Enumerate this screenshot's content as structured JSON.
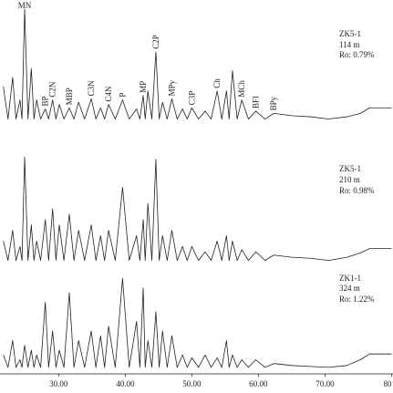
{
  "chart_data": [
    {
      "type": "line",
      "labels": [
        "ZK5-1",
        "114 m",
        "Ro: 0.79%"
      ],
      "annotations": [
        {
          "text": "MN",
          "x": 24.9
        },
        {
          "text": "BP",
          "x": 28.0
        },
        {
          "text": "C2N",
          "x": 29.1
        },
        {
          "text": "MBP",
          "x": 31.6
        },
        {
          "text": "C3N",
          "x": 34.9
        },
        {
          "text": "C4N",
          "x": 37.5
        },
        {
          "text": "P",
          "x": 39.6
        },
        {
          "text": "MP",
          "x": 42.7
        },
        {
          "text": "C2P",
          "x": 44.6
        },
        {
          "text": "MPy",
          "x": 47.0
        },
        {
          "text": "C3P",
          "x": 50.0
        },
        {
          "text": "Ch",
          "x": 53.8
        },
        {
          "text": "MCh",
          "x": 57.5
        },
        {
          "text": "BFl",
          "x": 59.6
        },
        {
          "text": "BPy",
          "x": 62.3
        }
      ],
      "xlim": [
        21.2,
        80.2
      ],
      "ylim": [
        0,
        100
      ],
      "x": [
        21.7,
        22.4,
        23.1,
        23.6,
        24.2,
        24.5,
        24.9,
        25.4,
        25.9,
        26.3,
        26.7,
        27.3,
        28.0,
        28.5,
        29.1,
        29.6,
        30.1,
        30.8,
        31.6,
        32.3,
        33.0,
        33.9,
        34.9,
        35.6,
        36.3,
        36.9,
        37.5,
        38.5,
        39.6,
        40.6,
        41.7,
        42.2,
        42.7,
        43.0,
        43.4,
        44.0,
        44.6,
        45.1,
        45.6,
        46.3,
        47.0,
        47.8,
        48.6,
        49.3,
        50.0,
        51.0,
        52.0,
        52.9,
        53.8,
        54.5,
        55.2,
        55.6,
        56.1,
        56.8,
        57.5,
        58.5,
        59.6,
        61.0,
        62.3,
        65.0,
        67.8,
        70.5,
        73.3,
        75.3,
        76.7,
        80.0
      ],
      "series": [
        {
          "color": "#222222",
          "values": [
            31,
            2,
            39,
            2,
            19,
            2,
            100,
            2,
            47,
            2,
            19,
            2,
            11,
            2,
            19,
            2,
            15,
            2,
            12,
            2,
            17,
            2,
            20,
            2,
            12,
            2,
            15,
            2,
            19,
            2,
            11,
            2,
            23,
            2,
            27,
            2,
            62,
            2,
            17,
            2,
            20,
            2,
            11,
            2,
            12,
            2,
            9,
            2,
            27,
            2,
            27,
            2,
            45,
            2,
            19,
            2,
            9,
            2,
            7,
            5,
            4,
            2,
            4,
            7,
            12,
            12
          ]
        }
      ]
    },
    {
      "type": "line",
      "labels": [
        "ZK5-1",
        "210 m",
        "Ro: 0.98%"
      ],
      "xlim": [
        21.2,
        80.2
      ],
      "ylim": [
        0,
        100
      ],
      "x": [
        21.7,
        22.4,
        23.1,
        23.6,
        24.2,
        24.5,
        24.9,
        25.4,
        25.9,
        26.3,
        26.7,
        27.3,
        28.0,
        28.5,
        29.1,
        29.6,
        30.1,
        30.8,
        31.6,
        32.3,
        33.0,
        33.9,
        34.9,
        35.6,
        36.3,
        36.9,
        37.5,
        38.5,
        39.6,
        40.6,
        41.7,
        42.2,
        42.7,
        43.0,
        43.4,
        44.0,
        44.6,
        45.1,
        45.6,
        46.3,
        47.0,
        47.8,
        48.6,
        49.3,
        50.0,
        51.0,
        52.0,
        52.9,
        53.8,
        54.5,
        55.2,
        55.6,
        56.1,
        56.8,
        57.5,
        58.5,
        59.6,
        61.0,
        62.3,
        65.0,
        67.8,
        70.5,
        73.3,
        75.3,
        76.7,
        80.0
      ],
      "series": [
        {
          "color": "#222222",
          "values": [
            20,
            2,
            30,
            2,
            15,
            2,
            98,
            2,
            35,
            2,
            20,
            2,
            40,
            2,
            50,
            2,
            35,
            2,
            45,
            2,
            30,
            2,
            35,
            2,
            25,
            2,
            30,
            2,
            70,
            2,
            25,
            2,
            40,
            2,
            55,
            2,
            96,
            2,
            25,
            2,
            30,
            2,
            15,
            2,
            15,
            2,
            10,
            2,
            20,
            2,
            25,
            2,
            20,
            2,
            12,
            2,
            10,
            2,
            7,
            5,
            4,
            2,
            5,
            9,
            13,
            13
          ]
        }
      ]
    },
    {
      "type": "line",
      "labels": [
        "ZK1-1",
        "324 m",
        "Ro: 1.22%"
      ],
      "xlim": [
        21.2,
        80.2
      ],
      "ylim": [
        0,
        100
      ],
      "xticks": [
        {
          "value": 30,
          "label": "30.00"
        },
        {
          "value": 40,
          "label": "40.00"
        },
        {
          "value": 50,
          "label": "50.00"
        },
        {
          "value": 60,
          "label": "60.00"
        },
        {
          "value": 70,
          "label": "70.00"
        },
        {
          "value": 80,
          "label": "80"
        }
      ],
      "x": [
        21.7,
        22.4,
        23.1,
        23.6,
        24.2,
        24.5,
        24.9,
        25.4,
        25.9,
        26.3,
        26.7,
        27.3,
        28.0,
        28.5,
        29.1,
        29.6,
        30.1,
        30.8,
        31.6,
        32.3,
        33.0,
        33.9,
        34.9,
        35.6,
        36.3,
        36.9,
        37.5,
        38.5,
        39.6,
        40.6,
        41.7,
        42.2,
        42.7,
        43.0,
        43.4,
        44.0,
        44.6,
        45.1,
        45.6,
        46.3,
        47.0,
        47.8,
        48.6,
        49.3,
        50.0,
        51.0,
        52.0,
        52.9,
        53.8,
        54.5,
        55.2,
        55.6,
        56.1,
        56.8,
        57.5,
        58.5,
        59.6,
        61.0,
        62.3,
        65.0,
        67.8,
        70.5,
        73.3,
        75.3,
        76.7,
        80.0
      ],
      "series": [
        {
          "color": "#222222",
          "values": [
            15,
            2,
            30,
            2,
            10,
            2,
            25,
            2,
            20,
            2,
            15,
            2,
            70,
            2,
            40,
            2,
            20,
            2,
            80,
            2,
            30,
            2,
            40,
            2,
            35,
            2,
            45,
            2,
            95,
            2,
            50,
            2,
            85,
            2,
            30,
            2,
            60,
            2,
            40,
            2,
            35,
            2,
            15,
            2,
            12,
            2,
            15,
            2,
            12,
            2,
            30,
            2,
            15,
            2,
            10,
            2,
            10,
            2,
            6,
            4,
            3,
            2,
            4,
            10,
            16,
            16
          ]
        }
      ]
    }
  ]
}
